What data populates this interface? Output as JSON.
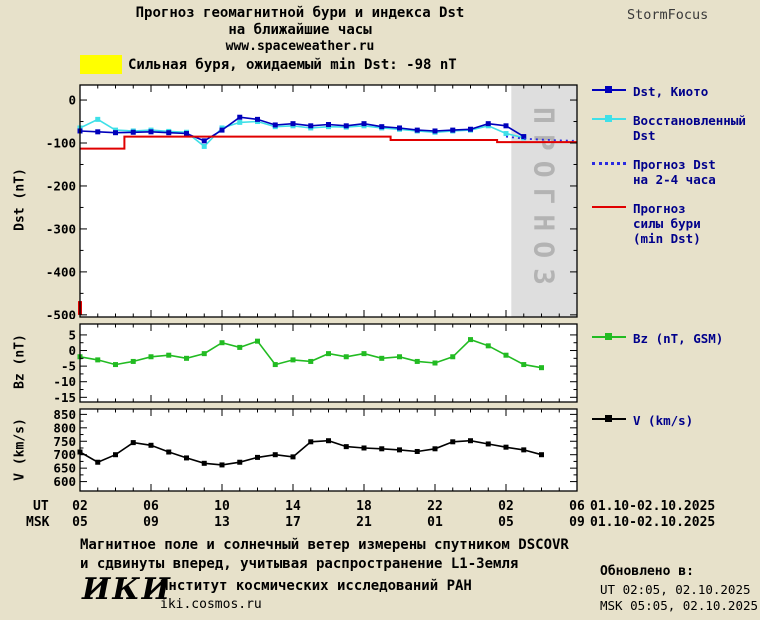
{
  "header": {
    "title_line1": "Прогноз геомагнитной бури и индекса Dst",
    "title_line2": "на ближайшие часы",
    "site": "www.spaceweather.ru",
    "brand": "StormFocus"
  },
  "alert": {
    "text": "Сильная буря, ожидаемый min Dst: -98 nT",
    "swatch_color": "#FFFF00"
  },
  "legend": {
    "main": [
      {
        "label": "Dst, Киото",
        "color": "#0000BB",
        "marker": true
      },
      {
        "label": "Восстановленный\nDst",
        "color": "#3FE0E8",
        "marker": true
      },
      {
        "label": "Прогноз Dst\nна 2-4 часа",
        "color": "#2A2AE0",
        "dotted": true
      },
      {
        "label": "Прогноз\nсилы бури\n(min Dst)",
        "color": "#E00000"
      }
    ],
    "bz": [
      {
        "label": "Bz (nT, GSM)",
        "color": "#22BB22",
        "marker": true
      }
    ],
    "v": [
      {
        "label": "V (km/s)",
        "color": "#000000",
        "marker": true
      }
    ]
  },
  "axis": {
    "ut_label": "UT",
    "msk_label": "MSK",
    "ut_ticks": [
      "02",
      "06",
      "10",
      "14",
      "18",
      "22",
      "02",
      "06"
    ],
    "msk_ticks": [
      "05",
      "09",
      "13",
      "17",
      "21",
      "01",
      "05",
      "09"
    ],
    "ut_date": "01.10-02.10.2025",
    "msk_date": "01.10-02.10.2025"
  },
  "chart_data": [
    {
      "name": "dst",
      "type": "line",
      "ylabel": "Dst (nT)",
      "xlim": [
        2,
        30
      ],
      "ylim": [
        -505,
        35
      ],
      "yticks": [
        0,
        -100,
        -200,
        -300,
        -400,
        -500
      ],
      "xticks": [
        2,
        6,
        10,
        14,
        18,
        22,
        26,
        30
      ],
      "forecast_region": {
        "from": 26.3,
        "to": 30,
        "label": "ПРОГНОЗ"
      },
      "series": [
        {
          "name": "Восстановленный Dst",
          "color": "#3FE0E8",
          "marker": "square",
          "width": 1.6,
          "x": [
            2,
            3,
            4,
            5,
            6,
            7,
            8,
            9,
            10,
            11,
            12,
            13,
            14,
            15,
            16,
            17,
            18,
            19,
            20,
            21,
            22,
            23,
            24,
            25,
            26,
            27
          ],
          "values": [
            -65,
            -45,
            -70,
            -72,
            -70,
            -73,
            -75,
            -108,
            -65,
            -52,
            -50,
            -62,
            -60,
            -65,
            -62,
            -63,
            -60,
            -65,
            -68,
            -72,
            -75,
            -72,
            -70,
            -60,
            -78,
            -88
          ]
        },
        {
          "name": "Dst, Киото",
          "color": "#0000BB",
          "marker": "square",
          "width": 1.6,
          "x": [
            2,
            3,
            4,
            5,
            6,
            7,
            8,
            9,
            10,
            11,
            12,
            13,
            14,
            15,
            16,
            17,
            18,
            19,
            20,
            21,
            22,
            23,
            24,
            25,
            26,
            27
          ],
          "values": [
            -72,
            -74,
            -76,
            -75,
            -74,
            -76,
            -78,
            -95,
            -70,
            -40,
            -45,
            -58,
            -55,
            -60,
            -57,
            -60,
            -55,
            -62,
            -65,
            -70,
            -72,
            -70,
            -68,
            -55,
            -60,
            -85
          ]
        },
        {
          "name": "Прогноз Dst на 2-4 часа",
          "color": "#2A2AE0",
          "dash": "2,4",
          "width": 1.8,
          "x": [
            26,
            27,
            28,
            29,
            30
          ],
          "values": [
            -85,
            -90,
            -92,
            -94,
            -95
          ]
        },
        {
          "name": "Прогноз силы бури (min Dst)",
          "color": "#E00000",
          "width": 2,
          "x": [
            2,
            4.5,
            4.5,
            19.5,
            19.5,
            25.5,
            25.5,
            30
          ],
          "values": [
            -113,
            -113,
            -85,
            -85,
            -93,
            -93,
            -98,
            -98
          ]
        },
        {
          "name": "min Dst marker",
          "color": "#E00000",
          "width": 4,
          "x": [
            2,
            2
          ],
          "values": [
            -500,
            -468
          ]
        }
      ]
    },
    {
      "name": "bz",
      "type": "line",
      "ylabel": "Bz (nT)",
      "xlim": [
        2,
        30
      ],
      "ylim": [
        -16.5,
        8.5
      ],
      "yticks": [
        5,
        0,
        -5,
        -10,
        -15
      ],
      "xticks": [
        2,
        6,
        10,
        14,
        18,
        22,
        26,
        30
      ],
      "series": [
        {
          "name": "Bz (nT, GSM)",
          "color": "#22BB22",
          "marker": "square",
          "width": 1.6,
          "x": [
            2,
            3,
            4,
            5,
            6,
            7,
            8,
            9,
            10,
            11,
            12,
            13,
            14,
            15,
            16,
            17,
            18,
            19,
            20,
            21,
            22,
            23,
            24,
            25,
            26,
            27,
            28
          ],
          "values": [
            -2,
            -3,
            -4.5,
            -3.5,
            -2,
            -1.5,
            -2.5,
            -1,
            2.5,
            1,
            3,
            -4.5,
            -3,
            -3.5,
            -1,
            -2,
            -1,
            -2.5,
            -2,
            -3.5,
            -4,
            -2,
            3.5,
            1.5,
            -1.5,
            -4.5,
            -5.5
          ]
        }
      ]
    },
    {
      "name": "v",
      "type": "line",
      "ylabel": "V (km/s)",
      "xlim": [
        2,
        30
      ],
      "ylim": [
        565,
        870
      ],
      "yticks": [
        850,
        800,
        750,
        700,
        650,
        600
      ],
      "xticks": [
        2,
        6,
        10,
        14,
        18,
        22,
        26,
        30
      ],
      "series": [
        {
          "name": "V (km/s)",
          "color": "#000000",
          "marker": "square",
          "width": 1.6,
          "x": [
            2,
            3,
            4,
            5,
            6,
            7,
            8,
            9,
            10,
            11,
            12,
            13,
            14,
            15,
            16,
            17,
            18,
            19,
            20,
            21,
            22,
            23,
            24,
            25,
            26,
            27,
            28
          ],
          "values": [
            710,
            672,
            700,
            745,
            735,
            710,
            688,
            668,
            662,
            672,
            690,
            700,
            692,
            748,
            752,
            730,
            725,
            722,
            718,
            712,
            722,
            748,
            752,
            740,
            728,
            718,
            700
          ]
        }
      ]
    }
  ],
  "footer": {
    "note_line1": "Магнитное поле и солнечный ветер измерены спутником DSCOVR",
    "note_line2": "и сдвинуты вперед, учитывая распространение L1-Земля",
    "logo": "ИКИ",
    "institute": "Институт космических исследований РАН",
    "site": "iki.cosmos.ru",
    "updated_label": "Обновлено в:",
    "updated_ut": "UT  02:05, 02.10.2025",
    "updated_msk": "MSK 05:05, 02.10.2025"
  }
}
